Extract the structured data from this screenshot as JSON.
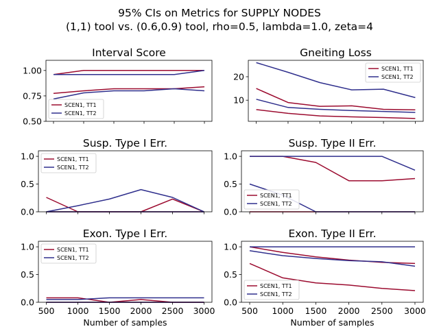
{
  "figure": {
    "title_line1": "95% CIs on Metrics for SUPPLY NODES",
    "title_line2": "(1,1) tool vs. (0.6,0.9) tool, rho=0.5, lambda=1.0, zeta=4"
  },
  "colors": {
    "tt1": "#9b0a2e",
    "tt2": "#2e2e8c"
  },
  "chart_data": [
    {
      "type": "line",
      "title": "Interval Score",
      "x": [
        500,
        1000,
        1500,
        2000,
        2500,
        3000
      ],
      "xlim": [
        375,
        3125
      ],
      "ylim": [
        0.5,
        1.1
      ],
      "yticks": [
        0.5,
        0.75,
        1.0
      ],
      "ytick_labels": [
        "0.50",
        "0.75",
        "1.00"
      ],
      "xticks": [
        500,
        1000,
        1500,
        2000,
        2500,
        3000
      ],
      "xtick_labels": [],
      "xlabel": "",
      "legend": {
        "placement": "lower-left",
        "entries": [
          "SCEN1, TT1",
          "SCEN1, TT2"
        ]
      },
      "series": [
        {
          "name": "SCEN1, TT1",
          "color": "tt1",
          "lines": [
            [
              0.96,
              1.0,
              1.0,
              1.0,
              1.0,
              1.0
            ],
            [
              0.775,
              0.8,
              0.82,
              0.82,
              0.82,
              0.84
            ]
          ]
        },
        {
          "name": "SCEN1, TT2",
          "color": "tt2",
          "lines": [
            [
              0.96,
              0.96,
              0.96,
              0.96,
              0.96,
              1.0
            ],
            [
              0.72,
              0.78,
              0.8,
              0.8,
              0.82,
              0.8
            ]
          ]
        }
      ]
    },
    {
      "type": "line",
      "title": "Gneiting Loss",
      "x": [
        500,
        1000,
        1500,
        2000,
        2500,
        3000
      ],
      "xlim": [
        375,
        3125
      ],
      "ylim": [
        1.0,
        27.0
      ],
      "yticks": [
        10,
        20
      ],
      "ytick_labels": [
        "10",
        "20"
      ],
      "xticks": [
        500,
        1000,
        1500,
        2000,
        2500,
        3000
      ],
      "xtick_labels": [],
      "xlabel": "",
      "legend": {
        "placement": "upper-right",
        "entries": [
          "SCEN1, TT1",
          "SCEN1, TT2"
        ]
      },
      "series": [
        {
          "name": "SCEN1, TT1",
          "color": "tt1",
          "lines": [
            [
              15.0,
              9.0,
              7.4,
              7.6,
              6.1,
              5.9
            ],
            [
              6.0,
              4.4,
              3.3,
              2.9,
              2.6,
              2.2
            ]
          ]
        },
        {
          "name": "SCEN1, TT2",
          "color": "tt2",
          "lines": [
            [
              26.0,
              21.9,
              17.5,
              14.4,
              14.7,
              11.1
            ],
            [
              10.4,
              6.9,
              6.1,
              5.6,
              5.2,
              4.8
            ]
          ]
        }
      ]
    },
    {
      "type": "line",
      "title": "Susp. Type I Err.",
      "x": [
        500,
        1000,
        1500,
        2000,
        2500,
        3000
      ],
      "xlim": [
        375,
        3125
      ],
      "ylim": [
        0.0,
        1.1
      ],
      "yticks": [
        0.0,
        0.5,
        1.0
      ],
      "ytick_labels": [
        "0.0",
        "0.5",
        "1.0"
      ],
      "xticks": [
        500,
        1000,
        1500,
        2000,
        2500,
        3000
      ],
      "xtick_labels": [],
      "xlabel": "",
      "legend": {
        "placement": "upper-left",
        "entries": [
          "SCEN1, TT1",
          "SCEN1, TT2"
        ]
      },
      "series": [
        {
          "name": "SCEN1, TT1",
          "color": "tt1",
          "lines": [
            [
              0.26,
              0.0,
              0.0,
              0.0,
              0.23,
              0.0
            ],
            [
              0.0,
              0.0,
              0.0,
              0.0,
              0.0,
              0.0
            ]
          ]
        },
        {
          "name": "SCEN1, TT2",
          "color": "tt2",
          "lines": [
            [
              0.0,
              0.11,
              0.23,
              0.4,
              0.26,
              0.0
            ],
            [
              0.0,
              0.0,
              0.0,
              0.0,
              0.0,
              0.0
            ]
          ]
        }
      ]
    },
    {
      "type": "line",
      "title": "Susp. Type II Err.",
      "x": [
        500,
        1000,
        1500,
        2000,
        2500,
        3000
      ],
      "xlim": [
        375,
        3125
      ],
      "ylim": [
        0.0,
        1.1
      ],
      "yticks": [
        0.0,
        0.5,
        1.0
      ],
      "ytick_labels": [
        "0.0",
        "0.5",
        "1.0"
      ],
      "xticks": [
        500,
        1000,
        1500,
        2000,
        2500,
        3000
      ],
      "xtick_labels": [],
      "xlabel": "",
      "legend": {
        "placement": "lower-left",
        "entries": [
          "SCEN1, TT1",
          "SCEN1, TT2"
        ]
      },
      "series": [
        {
          "name": "SCEN1, TT1",
          "color": "tt1",
          "lines": [
            [
              1.0,
              1.0,
              0.89,
              0.56,
              0.56,
              0.6
            ],
            [
              0.0,
              0.0,
              0.0,
              0.0,
              0.0,
              0.0
            ]
          ]
        },
        {
          "name": "SCEN1, TT2",
          "color": "tt2",
          "lines": [
            [
              1.0,
              1.0,
              1.0,
              1.0,
              1.0,
              0.75
            ],
            [
              0.5,
              0.3,
              0.0,
              0.0,
              0.0,
              0.0
            ]
          ]
        }
      ]
    },
    {
      "type": "line",
      "title": "Exon. Type I Err.",
      "x": [
        500,
        1000,
        1500,
        2000,
        2500,
        3000
      ],
      "xlim": [
        375,
        3125
      ],
      "ylim": [
        0.0,
        1.1
      ],
      "yticks": [
        0.0,
        0.5,
        1.0
      ],
      "ytick_labels": [
        "0.0",
        "0.5",
        "1.0"
      ],
      "xticks": [
        500,
        1000,
        1500,
        2000,
        2500,
        3000
      ],
      "xtick_labels": [
        "500",
        "1000",
        "1500",
        "2000",
        "2500",
        "3000"
      ],
      "xlabel": "Number of samples",
      "legend": {
        "placement": "upper-left",
        "entries": [
          "SCEN1, TT1",
          "SCEN1, TT2"
        ]
      },
      "series": [
        {
          "name": "SCEN1, TT1",
          "color": "tt1",
          "lines": [
            [
              0.08,
              0.08,
              0.0,
              0.05,
              0.0,
              0.0
            ],
            [
              0.0,
              0.0,
              0.0,
              0.0,
              0.0,
              0.0
            ]
          ]
        },
        {
          "name": "SCEN1, TT2",
          "color": "tt2",
          "lines": [
            [
              0.05,
              0.05,
              0.08,
              0.08,
              0.08,
              0.08
            ],
            [
              0.0,
              0.0,
              0.0,
              0.0,
              0.0,
              0.0
            ]
          ]
        }
      ]
    },
    {
      "type": "line",
      "title": "Exon. Type II Err.",
      "x": [
        500,
        1000,
        1500,
        2000,
        2500,
        3000
      ],
      "xlim": [
        375,
        3125
      ],
      "ylim": [
        0.0,
        1.1
      ],
      "yticks": [
        0.0,
        0.5,
        1.0
      ],
      "ytick_labels": [
        "0.0",
        "0.5",
        "1.0"
      ],
      "xticks": [
        500,
        1000,
        1500,
        2000,
        2500,
        3000
      ],
      "xtick_labels": [
        "500",
        "1000",
        "1500",
        "2000",
        "2500",
        "3000"
      ],
      "xlabel": "Number of samples",
      "legend": {
        "placement": "lower-left",
        "entries": [
          "SCEN1, TT1",
          "SCEN1, TT2"
        ]
      },
      "series": [
        {
          "name": "SCEN1, TT1",
          "color": "tt1",
          "lines": [
            [
              1.0,
              0.9,
              0.82,
              0.76,
              0.72,
              0.7
            ],
            [
              0.7,
              0.44,
              0.35,
              0.31,
              0.25,
              0.21
            ]
          ]
        },
        {
          "name": "SCEN1, TT2",
          "color": "tt2",
          "lines": [
            [
              1.0,
              1.0,
              1.0,
              1.0,
              1.0,
              1.0
            ],
            [
              0.93,
              0.84,
              0.79,
              0.75,
              0.73,
              0.65
            ]
          ]
        }
      ]
    }
  ]
}
